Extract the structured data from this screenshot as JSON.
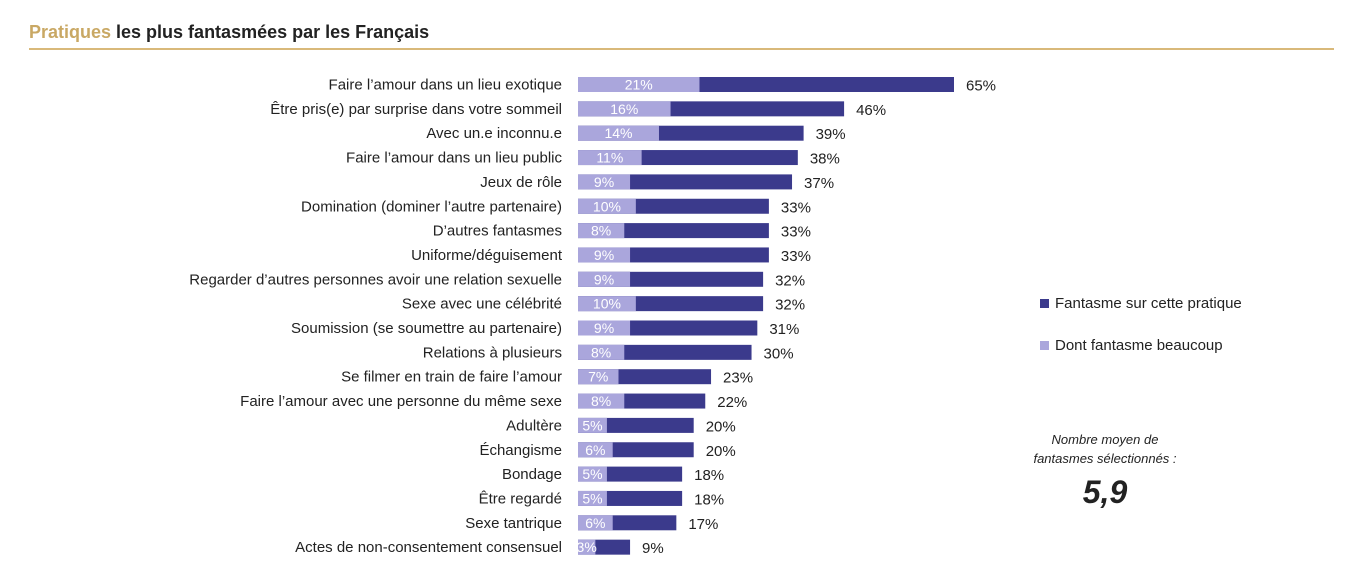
{
  "title": {
    "accent": "Pratiques",
    "rest": " les plus fantasmées par les Français"
  },
  "legend": {
    "series1": "Fantasme sur cette pratique",
    "series2": "Dont fantasme beaucoup"
  },
  "summary": {
    "label": "Nombre moyen de\nfantasmes sélectionnés :",
    "value": "5,9"
  },
  "colors": {
    "total": "#3b3a8c",
    "strong": "#aaa6dc",
    "accent": "#c9a864"
  },
  "chart_data": {
    "type": "bar",
    "orientation": "horizontal",
    "xlim": [
      0,
      65
    ],
    "categories": [
      "Faire l’amour dans un lieu exotique",
      "Être pris(e) par surprise dans votre sommeil",
      "Avec un.e inconnu.e",
      "Faire l’amour dans un lieu public",
      "Jeux de rôle",
      "Domination (dominer l’autre partenaire)",
      "D’autres fantasmes",
      "Uniforme/déguisement",
      "Regarder d’autres personnes avoir une relation sexuelle",
      "Sexe avec une célébrité",
      "Soumission (se soumettre au partenaire)",
      "Relations à plusieurs",
      "Se filmer en train de faire l’amour",
      "Faire l’amour avec une personne du même sexe",
      "Adultère",
      "Échangisme",
      "Bondage",
      "Être regardé",
      "Sexe tantrique",
      "Actes de non-consentement consensuel"
    ],
    "series": [
      {
        "name": "Fantasme sur cette pratique",
        "values": [
          65,
          46,
          39,
          38,
          37,
          33,
          33,
          33,
          32,
          32,
          31,
          30,
          23,
          22,
          20,
          20,
          18,
          18,
          17,
          9
        ],
        "labels": [
          "65%",
          "46%",
          "39%",
          "38%",
          "37%",
          "33%",
          "33%",
          "33%",
          "32%",
          "32%",
          "31%",
          "30%",
          "23%",
          "22%",
          "20%",
          "20%",
          "18%",
          "18%",
          "17%",
          "9%"
        ]
      },
      {
        "name": "Dont fantasme beaucoup",
        "values": [
          21,
          16,
          14,
          11,
          9,
          10,
          8,
          9,
          9,
          10,
          9,
          8,
          7,
          8,
          5,
          6,
          5,
          5,
          6,
          3
        ],
        "labels": [
          "21%",
          "16%",
          "14%",
          "11%",
          "9%",
          "10%",
          "8%",
          "9%",
          "9%",
          "10%",
          "9%",
          "8%",
          "7%",
          "8%",
          "5%",
          "6%",
          "5%",
          "5%",
          "6%",
          "3%"
        ]
      }
    ]
  }
}
